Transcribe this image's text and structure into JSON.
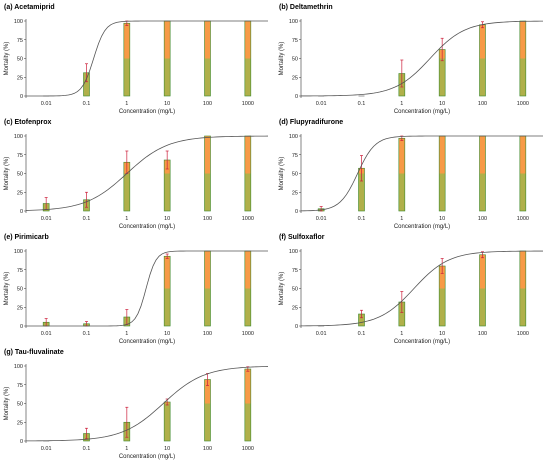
{
  "figure": {
    "background": "#ffffff"
  },
  "colors": {
    "bar_low": "#b0b04a",
    "bar_high": "#f79a46",
    "bar_edge": "#3d8a2e",
    "error": "#cc1f3a",
    "curve": "#555555"
  },
  "chart_data": [
    {
      "type": "bar",
      "title": "(a) Acetamiprid",
      "xlabel": "Concentration (mg/L)",
      "ylabel": "Mortality (%)",
      "categories": [
        "0.01",
        "0.1",
        "1",
        "10",
        "100",
        "1000"
      ],
      "values": [
        0,
        31,
        97,
        100,
        100,
        100
      ],
      "errors": [
        0,
        12,
        3,
        0,
        0,
        0
      ],
      "ylim": [
        0,
        100
      ],
      "yticks": [
        0,
        25,
        50,
        75,
        100
      ],
      "curve": {
        "ec50": 0.15,
        "slope": 3.0
      }
    },
    {
      "type": "bar",
      "title": "(b) Deltamethrin",
      "xlabel": "Concentration (mg/L)",
      "ylabel": "Mortality (%)",
      "categories": [
        "0.01",
        "0.1",
        "1",
        "10",
        "100",
        "1000"
      ],
      "values": [
        0,
        0,
        30,
        62,
        95,
        100
      ],
      "errors": [
        0,
        0,
        18,
        15,
        4,
        0
      ],
      "ylim": [
        0,
        100
      ],
      "yticks": [
        0,
        25,
        50,
        75,
        100
      ],
      "curve": {
        "ec50": 5.0,
        "slope": 1.0
      }
    },
    {
      "type": "bar",
      "title": "(c) Etofenprox",
      "xlabel": "Concentration (mg/L)",
      "ylabel": "Mortality (%)",
      "categories": [
        "0.01",
        "0.1",
        "1",
        "10",
        "100",
        "1000"
      ],
      "values": [
        10,
        15,
        65,
        68,
        100,
        100
      ],
      "errors": [
        8,
        10,
        15,
        12,
        0,
        0
      ],
      "ylim": [
        0,
        100
      ],
      "yticks": [
        0,
        25,
        50,
        75,
        100
      ],
      "curve": {
        "ec50": 1.0,
        "slope": 0.85
      }
    },
    {
      "type": "bar",
      "title": "(d) Flupyradifurone",
      "xlabel": "Concentration (mg/L)",
      "ylabel": "Mortality (%)",
      "categories": [
        "0.01",
        "0.1",
        "1",
        "10",
        "100",
        "1000"
      ],
      "values": [
        3,
        57,
        97,
        100,
        100,
        100
      ],
      "errors": [
        3,
        17,
        3,
        0,
        0,
        0
      ],
      "ylim": [
        0,
        100
      ],
      "yticks": [
        0,
        25,
        50,
        75,
        100
      ],
      "curve": {
        "ec50": 0.08,
        "slope": 2.0
      }
    },
    {
      "type": "bar",
      "title": "(e) Pirimicarb",
      "xlabel": "Concentration (mg/L)",
      "ylabel": "Mortality (%)",
      "categories": [
        "0.01",
        "0.1",
        "1",
        "10",
        "100",
        "1000"
      ],
      "values": [
        5,
        3,
        12,
        93,
        100,
        100
      ],
      "errors": [
        5,
        3,
        10,
        3,
        0,
        0
      ],
      "ylim": [
        0,
        100
      ],
      "yticks": [
        0,
        25,
        50,
        75,
        100
      ],
      "curve": {
        "ec50": 3.0,
        "slope": 3.5
      }
    },
    {
      "type": "bar",
      "title": "(f) Sulfoxaflor",
      "xlabel": "Concentration (mg/L)",
      "ylabel": "Mortality (%)",
      "categories": [
        "0.01",
        "0.1",
        "1",
        "10",
        "100",
        "1000"
      ],
      "values": [
        0,
        16,
        32,
        80,
        95,
        100
      ],
      "errors": [
        0,
        5,
        14,
        10,
        4,
        0
      ],
      "ylim": [
        0,
        100
      ],
      "yticks": [
        0,
        25,
        50,
        75,
        100
      ],
      "curve": {
        "ec50": 2.0,
        "slope": 1.0
      }
    },
    {
      "type": "bar",
      "title": "(g) Tau-fluvalinate",
      "xlabel": "Concentration (mg/L)",
      "ylabel": "Mortality (%)",
      "categories": [
        "0.01",
        "0.1",
        "1",
        "10",
        "100",
        "1000"
      ],
      "values": [
        0,
        10,
        25,
        52,
        82,
        96
      ],
      "errors": [
        0,
        7,
        20,
        4,
        8,
        3
      ],
      "ylim": [
        0,
        100
      ],
      "yticks": [
        0,
        25,
        50,
        75,
        100
      ],
      "curve": {
        "ec50": 8.0,
        "slope": 0.85
      }
    }
  ]
}
